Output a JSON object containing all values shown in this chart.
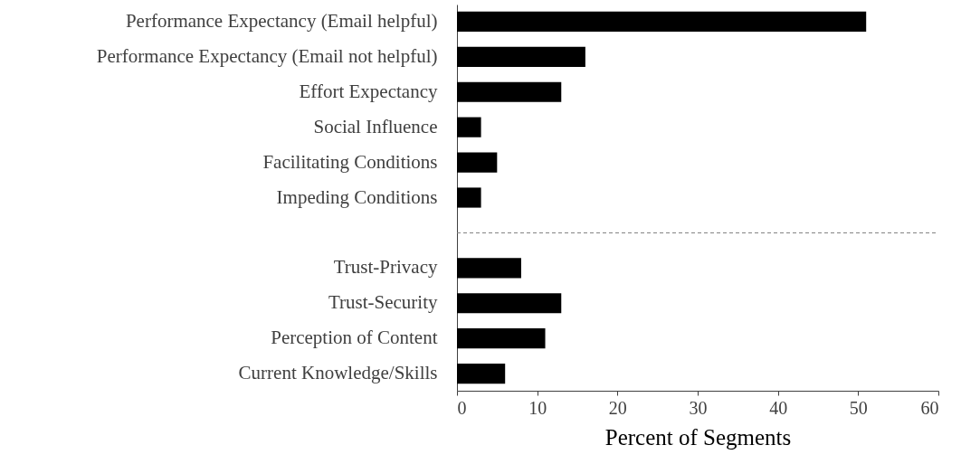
{
  "chart_data": {
    "type": "bar",
    "orientation": "horizontal",
    "xlabel": "Percent of Segments",
    "categories": [
      "Performance Expectancy (Email helpful)",
      "Performance Expectancy (Email not helpful)",
      "Effort Expectancy",
      "Social Influence",
      "Facilitating Conditions",
      "Impeding Conditions",
      null,
      "Trust-Privacy",
      "Trust-Security",
      "Perception of Content",
      "Current Knowledge/Skills"
    ],
    "values": [
      51,
      16,
      13,
      3,
      5,
      3,
      null,
      8,
      13,
      11,
      6
    ],
    "color": "#000000",
    "xlim": [
      0,
      60
    ],
    "xticks": [
      0,
      10,
      20,
      30,
      40,
      50,
      60
    ],
    "grid": false,
    "ref_lines": [
      {
        "axis": "y",
        "value": null,
        "color": "#7f7f7f",
        "line_style": "dashed"
      }
    ]
  }
}
